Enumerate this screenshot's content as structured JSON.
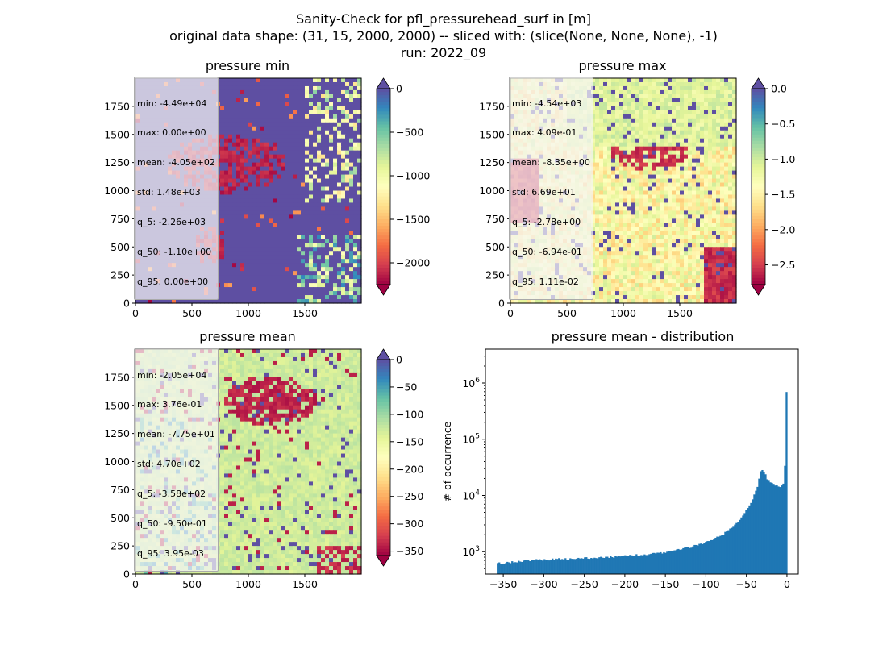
{
  "figure": {
    "title_line1": "Sanity-Check for pfl_pressurehead_surf in [m]",
    "title_line2": "original data shape: (31, 15, 2000, 2000) -- sliced with: (slice(None, None, None), -1)",
    "title_line3": "run: 2022_09"
  },
  "colors": {
    "histogram_bar": "#1f77b4",
    "colormap": "Spectral"
  },
  "chart_data": [
    {
      "type": "heatmap",
      "title": "pressure min",
      "colormap": "Spectral",
      "x_ticks": [
        "0",
        "500",
        "1000",
        "1500"
      ],
      "y_ticks": [
        "0",
        "250",
        "500",
        "750",
        "1000",
        "1250",
        "1500",
        "1750"
      ],
      "xlim": [
        0,
        2000
      ],
      "ylim": [
        0,
        2000
      ],
      "colorbar": {
        "range": [
          -2250,
          0
        ],
        "ticks": [
          "0",
          "−500",
          "−1000",
          "−1500",
          "−2000"
        ],
        "extend": "both"
      },
      "stats": [
        "min: -4.49e+04",
        "max: 0.00e+00",
        "mean: -4.05e+02",
        "std: 1.48e+03",
        "q_5: -2.26e+03",
        "q_50: -1.10e+00",
        "q_95: 0.00e+00"
      ]
    },
    {
      "type": "heatmap",
      "title": "pressure max",
      "colormap": "Spectral",
      "x_ticks": [
        "0",
        "500",
        "1000",
        "1500"
      ],
      "y_ticks": [
        "0",
        "250",
        "500",
        "750",
        "1000",
        "1250",
        "1500",
        "1750"
      ],
      "xlim": [
        0,
        2000
      ],
      "ylim": [
        0,
        2000
      ],
      "colorbar": {
        "range": [
          -2.78,
          0.0
        ],
        "ticks": [
          "0.0",
          "−0.5",
          "−1.0",
          "−1.5",
          "−2.0",
          "−2.5"
        ],
        "extend": "both"
      },
      "stats": [
        "min: -4.54e+03",
        "max: 4.09e-01",
        "mean: -8.35e+00",
        "std: 6.69e+01",
        "q_5: -2.78e+00",
        "q_50: -6.94e-01",
        "q_95: 1.11e-02"
      ]
    },
    {
      "type": "heatmap",
      "title": "pressure mean",
      "colormap": "Spectral",
      "x_ticks": [
        "0",
        "500",
        "1000",
        "1500"
      ],
      "y_ticks": [
        "0",
        "250",
        "500",
        "750",
        "1000",
        "1250",
        "1500",
        "1750"
      ],
      "xlim": [
        0,
        2000
      ],
      "ylim": [
        0,
        2000
      ],
      "colorbar": {
        "range": [
          -358,
          0
        ],
        "ticks": [
          "0",
          "−50",
          "−100",
          "−150",
          "−200",
          "−250",
          "−300",
          "−350"
        ],
        "extend": "both"
      },
      "stats": [
        "min: -2.05e+04",
        "max: 3.76e-01",
        "mean: -7.75e+01",
        "std: 4.70e+02",
        "q_5: -3.58e+02",
        "q_50: -9.50e-01",
        "q_95: 3.95e-03"
      ]
    },
    {
      "type": "bar",
      "title": "pressure mean - distribution",
      "ylabel": "# of occurrence",
      "xlabel": "",
      "yscale": "log",
      "xlim": [
        -372,
        14
      ],
      "ylim": [
        400,
        4000000
      ],
      "x_ticks": [
        "−350",
        "−300",
        "−250",
        "−200",
        "−150",
        "−100",
        "−50",
        "0"
      ],
      "y_ticks": [
        "10^3",
        "10^4",
        "10^5",
        "10^6"
      ],
      "grid": false,
      "bins": {
        "start": -358,
        "end": 0.4,
        "count": 180
      },
      "profile": [
        [
          -358,
          620
        ],
        [
          -340,
          650
        ],
        [
          -320,
          700
        ],
        [
          -280,
          740
        ],
        [
          -250,
          770
        ],
        [
          -220,
          790
        ],
        [
          -200,
          840
        ],
        [
          -180,
          880
        ],
        [
          -160,
          940
        ],
        [
          -140,
          1030
        ],
        [
          -120,
          1200
        ],
        [
          -100,
          1480
        ],
        [
          -90,
          1700
        ],
        [
          -80,
          2000
        ],
        [
          -70,
          2500
        ],
        [
          -60,
          3400
        ],
        [
          -55,
          4400
        ],
        [
          -48,
          6000
        ],
        [
          -44,
          7500
        ],
        [
          -40,
          10500
        ],
        [
          -36,
          15000
        ],
        [
          -33,
          25000
        ],
        [
          -31,
          30000
        ],
        [
          -29,
          28000
        ],
        [
          -27,
          24000
        ],
        [
          -24,
          19000
        ],
        [
          -20,
          17000
        ],
        [
          -16,
          16000
        ],
        [
          -12,
          15000
        ],
        [
          -9,
          14000
        ],
        [
          -6,
          15000
        ],
        [
          -4,
          17000
        ],
        [
          -3,
          22000
        ],
        [
          -2,
          60000
        ],
        [
          -1,
          300000
        ],
        [
          0,
          2500000
        ]
      ]
    }
  ]
}
